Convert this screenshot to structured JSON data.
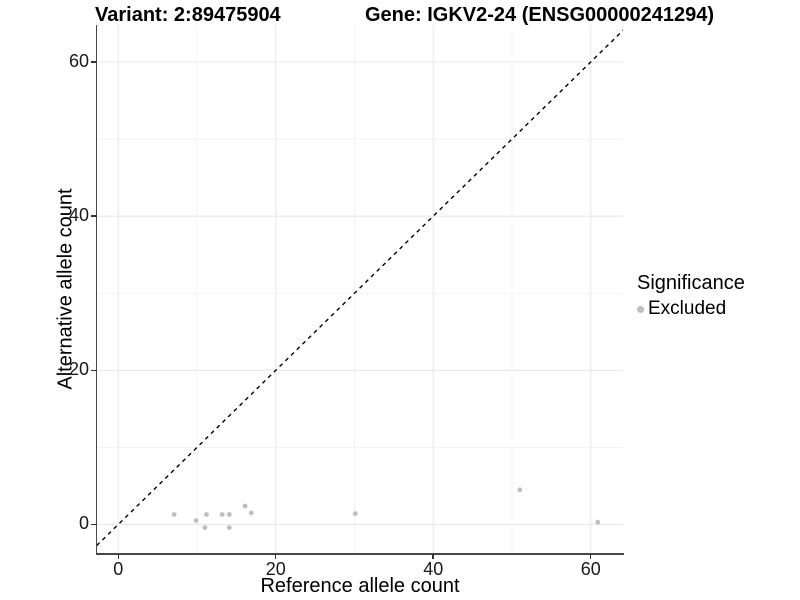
{
  "header": {
    "title_left": "Variant: 2:89475904",
    "title_right": "Gene: IGKV2-24 (ENSG00000241294)"
  },
  "legend": {
    "title": "Significance",
    "items": [
      {
        "label": "Excluded",
        "color": "#bebebe"
      }
    ]
  },
  "colors": {
    "background": "#ffffff",
    "grid_major": "#e9e9e9",
    "grid_minor": "#f3f3f3",
    "axis_line": "#474747",
    "tick": "#333333",
    "identity_line": "#000000",
    "point": "#bebebe"
  },
  "chart_data": {
    "type": "scatter",
    "title": "Variant: 2:89475904 | Gene: IGKV2-24 (ENSG00000241294)",
    "xlabel": "Reference allele count",
    "ylabel": "Alternative allele count",
    "x_ticks": [
      0,
      20,
      40,
      60
    ],
    "y_ticks": [
      0,
      20,
      40,
      60
    ],
    "x_minor": [
      10,
      30,
      50
    ],
    "y_minor": [
      10,
      30,
      50
    ],
    "xlim": [
      -2.7,
      64.1
    ],
    "ylim": [
      -3.7,
      64.8
    ],
    "grid": true,
    "legend_position": "right",
    "identity_line": {
      "equation": "y = x",
      "style": "dashed",
      "color": "#000000"
    },
    "series": [
      {
        "name": "Excluded",
        "color": "#bebebe",
        "marker": "circle",
        "points": [
          [
            7.1,
            1.3
          ],
          [
            9.9,
            0.5
          ],
          [
            11.0,
            -0.4
          ],
          [
            11.2,
            1.3
          ],
          [
            13.2,
            1.3
          ],
          [
            14.1,
            1.3
          ],
          [
            14.1,
            -0.4
          ],
          [
            16.1,
            2.4
          ],
          [
            16.9,
            1.5
          ],
          [
            30.1,
            1.4
          ],
          [
            51.0,
            4.5
          ],
          [
            60.9,
            0.3
          ]
        ]
      }
    ]
  }
}
